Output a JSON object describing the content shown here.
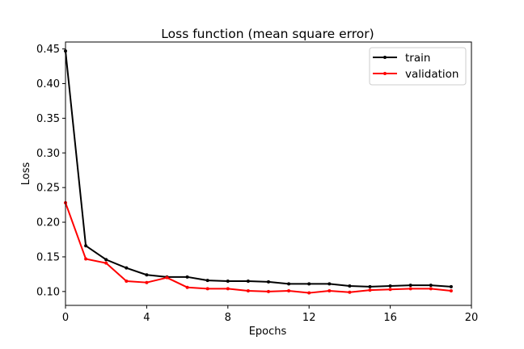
{
  "chart_data": {
    "type": "line",
    "title": "Loss function (mean square error)",
    "xlabel": "Epochs",
    "ylabel": "Loss",
    "xlim": [
      0,
      20
    ],
    "ylim": [
      0.08,
      0.46
    ],
    "xticks": [
      0,
      4,
      8,
      12,
      16,
      20
    ],
    "xtick_labels": [
      "0",
      "4",
      "8",
      "12",
      "16",
      "20"
    ],
    "yticks": [
      0.1,
      0.15,
      0.2,
      0.25,
      0.3,
      0.35,
      0.4,
      0.45
    ],
    "ytick_labels": [
      "0.10",
      "0.15",
      "0.20",
      "0.25",
      "0.30",
      "0.35",
      "0.40",
      "0.45"
    ],
    "grid": false,
    "legend_position": "top-right",
    "x": [
      0,
      1,
      2,
      3,
      4,
      5,
      6,
      7,
      8,
      9,
      10,
      11,
      12,
      13,
      14,
      15,
      16,
      17,
      18,
      19
    ],
    "series": [
      {
        "name": "train",
        "color": "#000000",
        "values": [
          0.447,
          0.166,
          0.146,
          0.134,
          0.124,
          0.121,
          0.121,
          0.116,
          0.115,
          0.115,
          0.114,
          0.111,
          0.111,
          0.111,
          0.108,
          0.107,
          0.108,
          0.109,
          0.109,
          0.107
        ]
      },
      {
        "name": "validation",
        "color": "#ff0000",
        "values": [
          0.228,
          0.147,
          0.141,
          0.115,
          0.113,
          0.12,
          0.106,
          0.104,
          0.104,
          0.101,
          0.1,
          0.101,
          0.098,
          0.101,
          0.099,
          0.102,
          0.103,
          0.104,
          0.104,
          0.101
        ]
      }
    ]
  }
}
